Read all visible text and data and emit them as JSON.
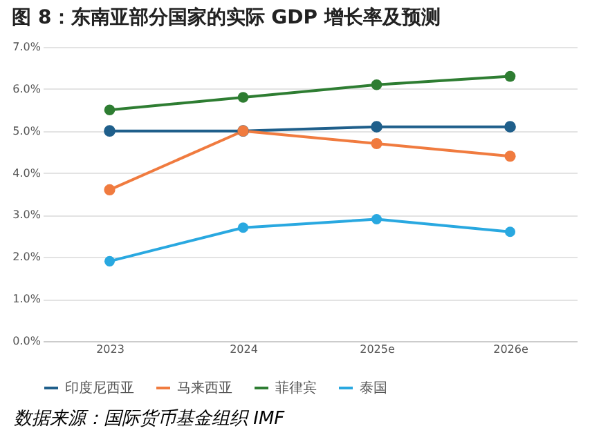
{
  "chart_data": {
    "type": "line",
    "title": "图 8：东南亚部分国家的实际 GDP 增长率及预测",
    "categories": [
      "2023",
      "2024",
      "2025e",
      "2026e"
    ],
    "series": [
      {
        "name": "印度尼西亚",
        "color": "#1f5f8b",
        "values": [
          5.0,
          5.0,
          5.1,
          5.1
        ]
      },
      {
        "name": "马来西亚",
        "color": "#f07b3f",
        "values": [
          3.6,
          5.0,
          4.7,
          4.4
        ]
      },
      {
        "name": "菲律宾",
        "color": "#2e7d32",
        "values": [
          5.5,
          5.8,
          6.1,
          6.3
        ]
      },
      {
        "name": "泰国",
        "color": "#29a8e0",
        "values": [
          1.9,
          2.7,
          2.9,
          2.6
        ]
      }
    ],
    "ylim": [
      0,
      7
    ],
    "yticks": [
      {
        "value": 0,
        "label": "0.0%"
      },
      {
        "value": 1,
        "label": "1.0%"
      },
      {
        "value": 2,
        "label": "2.0%"
      },
      {
        "value": 3,
        "label": "3.0%"
      },
      {
        "value": 4,
        "label": "4.0%"
      },
      {
        "value": 5,
        "label": "5.0%"
      },
      {
        "value": 6,
        "label": "6.0%"
      },
      {
        "value": 7,
        "label": "7.0%"
      }
    ],
    "grid": "y",
    "legend": "bottom",
    "marker": "circle",
    "line_style": "solid",
    "annotations": [
      "数据来源：国际货币基金组织 IMF"
    ]
  }
}
